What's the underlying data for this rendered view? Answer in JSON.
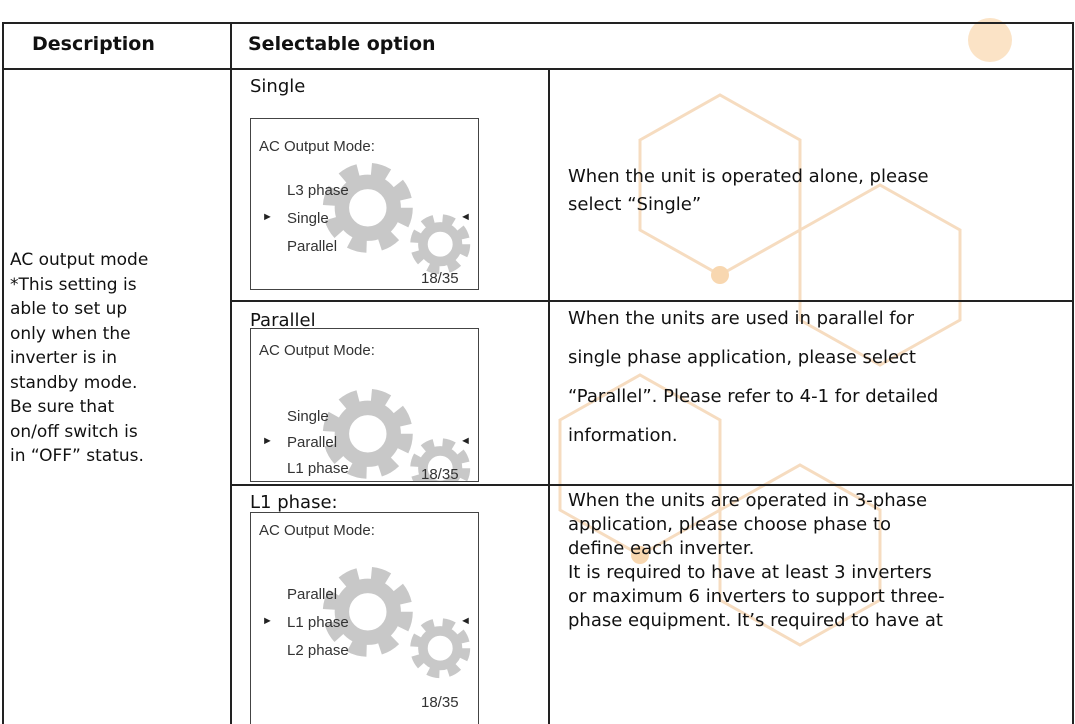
{
  "header": [
    "Description",
    "Selectable option"
  ],
  "description": [
    "AC output mode",
    "*This setting is",
    "able to set up",
    "only when the",
    "inverter is in",
    "standby mode.",
    "Be sure that",
    "on/off switch is",
    "in “OFF” status."
  ],
  "options": [
    {
      "label": "Single",
      "screen": {
        "title": "AC Output Mode:",
        "items": [
          "L3 phase",
          "Single",
          "Parallel"
        ],
        "page": "18/35"
      },
      "description": [
        "When the unit is operated alone, please",
        "select “Single”"
      ]
    },
    {
      "label": "Parallel",
      "screen": {
        "title": "AC Output Mode:",
        "items": [
          "Single",
          "Parallel",
          "L1 phase"
        ],
        "page": "18/35"
      },
      "description": [
        "When the units are used in parallel for",
        "single phase application, please select",
        "“Parallel”. Please refer to 4-1 for detailed",
        "information."
      ]
    },
    {
      "label": "L1 phase:",
      "screen": {
        "title": "AC Output Mode:",
        "items": [
          "Parallel",
          "L1 phase",
          "L2 phase"
        ],
        "page": "18/35"
      },
      "description": [
        "When the units are operated in 3-phase",
        "application, please choose phase to",
        "define each inverter.",
        "It is required to have at least 3 inverters",
        "or maximum 6 inverters to support three-",
        "phase equipment. It’s required to have at"
      ]
    }
  ]
}
